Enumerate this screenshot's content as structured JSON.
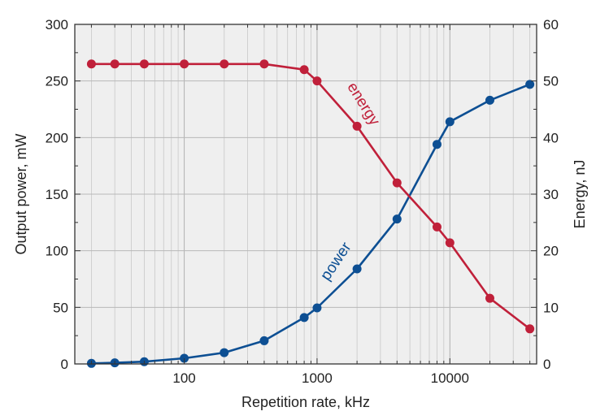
{
  "chart_data": {
    "type": "line",
    "xscale": "log",
    "xlim": [
      15,
      45000
    ],
    "xlabel": "Repetition rate, kHz",
    "x_ticks": [
      100,
      1000,
      10000
    ],
    "x_tick_labels": [
      "100",
      "1000",
      "10000"
    ],
    "ylabel_left": "Output power, mW",
    "ylim_left": [
      0,
      300
    ],
    "y_ticks_left": [
      "0",
      "50",
      "100",
      "150",
      "200",
      "250",
      "300"
    ],
    "ylabel_right": "Energy, nJ",
    "ylim_right": [
      0,
      60
    ],
    "y_ticks_right": [
      "0",
      "10",
      "20",
      "30",
      "40",
      "50",
      "60"
    ],
    "grid": true,
    "series": [
      {
        "name": "power",
        "axis": "left",
        "color": "#0d4f93",
        "x": [
          20,
          30,
          50,
          100,
          200,
          400,
          800,
          1000,
          2000,
          4000,
          8000,
          10000,
          20000,
          40000
        ],
        "values": [
          0.5,
          1,
          2,
          5,
          10,
          20.5,
          41,
          49.5,
          84,
          128,
          194,
          214,
          233,
          247
        ]
      },
      {
        "name": "energy",
        "axis": "right",
        "color": "#c0203a",
        "x": [
          20,
          30,
          50,
          100,
          200,
          400,
          800,
          1000,
          2000,
          4000,
          8000,
          10000,
          20000,
          40000
        ],
        "values": [
          53,
          53,
          53,
          53,
          53,
          53,
          52,
          50,
          42,
          32,
          24.2,
          21.4,
          11.6,
          6.2
        ]
      }
    ]
  }
}
